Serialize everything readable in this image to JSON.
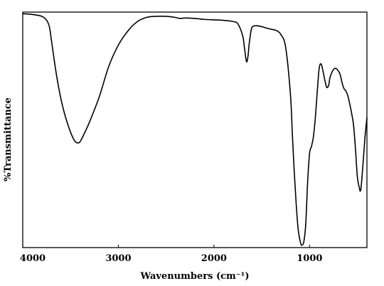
{
  "chart_data": {
    "type": "line",
    "xlabel": "Wavenumbers (cm⁻¹)",
    "ylabel": "%Transmittance",
    "xlim": [
      4000,
      400
    ],
    "x_reversed": true,
    "ylim": [
      0,
      100
    ],
    "y_tick_labels_shown": false,
    "grid": false,
    "legend": "none",
    "x_ticks": [
      4000,
      3000,
      2000,
      1000
    ],
    "x_tick_labels": [
      "4000",
      "3000",
      "2000",
      "1000"
    ],
    "line_color": "#000000",
    "series": [
      {
        "x": [
          4000,
          3900,
          3800,
          3750,
          3720,
          3700,
          3650,
          3600,
          3550,
          3500,
          3460,
          3430,
          3400,
          3350,
          3300,
          3200,
          3100,
          3000,
          2900,
          2800,
          2700,
          2600,
          2500,
          2400,
          2360,
          2300,
          2200,
          2100,
          2000,
          1900,
          1800,
          1750,
          1700,
          1680,
          1660,
          1645,
          1630,
          1610,
          1590,
          1550,
          1500,
          1450,
          1400,
          1350,
          1300,
          1250,
          1200,
          1180,
          1160,
          1140,
          1120,
          1100,
          1090,
          1080,
          1060,
          1040,
          1020,
          1000,
          980,
          960,
          940,
          920,
          900,
          880,
          860,
          840,
          820,
          800,
          790,
          780,
          760,
          740,
          720,
          700,
          680,
          660,
          640,
          620,
          600,
          580,
          560,
          540,
          520,
          500,
          480,
          470,
          460,
          440,
          420,
          400
        ],
        "y": [
          99.3,
          99.0,
          98.2,
          96.5,
          93.5,
          88.0,
          74.0,
          63.0,
          55.0,
          49.0,
          45.5,
          44.5,
          45.0,
          49.0,
          53.5,
          64.0,
          77.0,
          86.0,
          92.0,
          96.0,
          97.8,
          98.2,
          98.2,
          97.7,
          97.3,
          97.5,
          97.3,
          96.9,
          96.7,
          96.5,
          96.0,
          95.0,
          90.0,
          84.5,
          79.0,
          81.0,
          87.0,
          92.5,
          94.0,
          94.2,
          93.8,
          93.2,
          92.7,
          92.2,
          90.5,
          85.0,
          65.0,
          48.0,
          32.0,
          18.5,
          8.0,
          3.0,
          1.5,
          1.0,
          2.5,
          10.0,
          28.0,
          40.0,
          43.0,
          47.0,
          55.0,
          66.0,
          76.0,
          78.0,
          75.0,
          71.0,
          68.0,
          69.0,
          71.5,
          73.0,
          75.0,
          76.0,
          76.0,
          75.0,
          73.5,
          70.0,
          67.5,
          66.5,
          64.5,
          61.0,
          57.0,
          52.0,
          42.0,
          30.0,
          25.5,
          24.0,
          26.0,
          36.0,
          47.0,
          55.0
        ]
      }
    ]
  }
}
